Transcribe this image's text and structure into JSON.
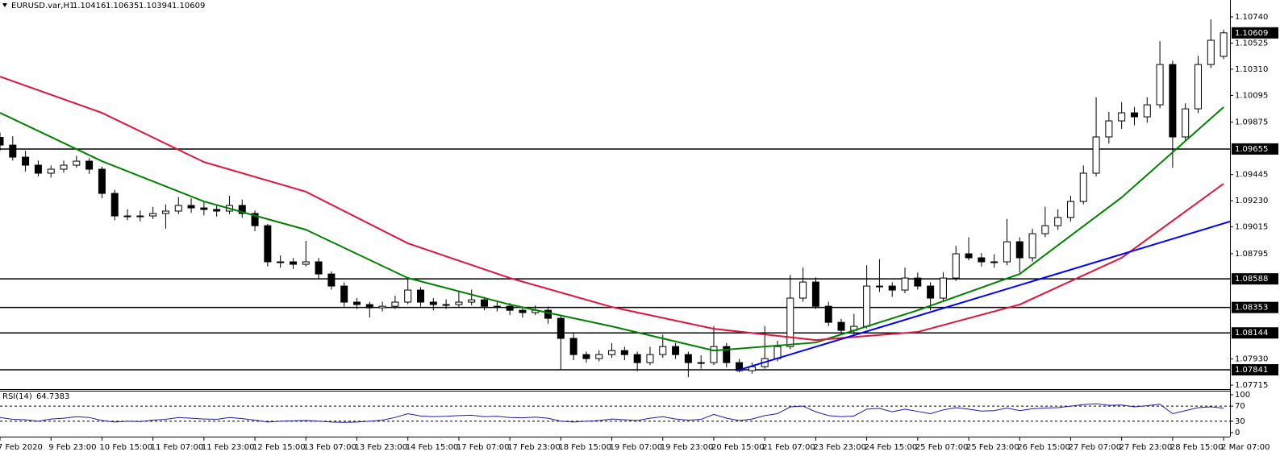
{
  "chart_data": {
    "type": "candlestick",
    "title": "EURUSD.var,H1",
    "header_ohlc": [
      1.10416,
      1.10635,
      1.10394,
      1.10609
    ],
    "xlim": [
      0,
      96.5
    ],
    "xticks": [
      {
        "value": 0,
        "label": "7 Feb 2020"
      },
      {
        "value": 4,
        "label": "9 Feb 23:00"
      },
      {
        "value": 8,
        "label": "10 Feb 15:00"
      },
      {
        "value": 12,
        "label": "11 Feb 07:00"
      },
      {
        "value": 16,
        "label": "11 Feb 23:00"
      },
      {
        "value": 20,
        "label": "12 Feb 15:00"
      },
      {
        "value": 24,
        "label": "13 Feb 07:00"
      },
      {
        "value": 28,
        "label": "13 Feb 23:00"
      },
      {
        "value": 32,
        "label": "14 Feb 15:00"
      },
      {
        "value": 36,
        "label": "17 Feb 07:00"
      },
      {
        "value": 40,
        "label": "17 Feb 23:00"
      },
      {
        "value": 44,
        "label": "18 Feb 15:00"
      },
      {
        "value": 48,
        "label": "19 Feb 07:00"
      },
      {
        "value": 52,
        "label": "19 Feb 23:00"
      },
      {
        "value": 56,
        "label": "20 Feb 15:00"
      },
      {
        "value": 60,
        "label": "21 Feb 07:00"
      },
      {
        "value": 64,
        "label": "23 Feb 23:00"
      },
      {
        "value": 68,
        "label": "24 Feb 15:00"
      },
      {
        "value": 72,
        "label": "25 Feb 07:00"
      },
      {
        "value": 76,
        "label": "25 Feb 23:00"
      },
      {
        "value": 80,
        "label": "26 Feb 15:00"
      },
      {
        "value": 84,
        "label": "27 Feb 07:00"
      },
      {
        "value": 88,
        "label": "27 Feb 23:00"
      },
      {
        "value": 92,
        "label": "28 Feb 15:00"
      },
      {
        "value": 96,
        "label": "2 Mar 07:00"
      }
    ],
    "ylim": [
      1.07689,
      1.10826
    ],
    "yticks": [
      {
        "value": 1.1074,
        "label": "1.10740"
      },
      1.10525,
      {
        "value": 1.1031,
        "label": "1.10310"
      },
      1.10095,
      1.09875,
      1.09445,
      {
        "value": 1.0923,
        "label": "1.09230"
      },
      1.09015,
      1.08795,
      {
        "value": 1.0793,
        "label": "1.07930"
      },
      1.07715
    ],
    "levels": [
      1.09655,
      1.08588,
      1.08353,
      1.08144,
      1.07841
    ],
    "last_price": 1.10609,
    "ohlc": [
      [
        1.0975,
        1.0979,
        1.0964,
        1.09687
      ],
      [
        1.09687,
        1.0976,
        1.0956,
        1.09588
      ],
      [
        1.09588,
        1.0964,
        1.0947,
        1.09522
      ],
      [
        1.09522,
        1.0956,
        1.0943,
        1.09456
      ],
      [
        1.09456,
        1.0952,
        1.0942,
        1.09489
      ],
      [
        1.09489,
        1.0956,
        1.0946,
        1.09522
      ],
      [
        1.09522,
        1.096,
        1.095,
        1.09555
      ],
      [
        1.09555,
        1.0958,
        1.0945,
        1.09489
      ],
      [
        1.09489,
        1.0951,
        1.0925,
        1.0929
      ],
      [
        1.0929,
        1.0932,
        1.0907,
        1.09105
      ],
      [
        1.09105,
        1.0916,
        1.0907,
        1.09105
      ],
      [
        1.09105,
        1.0915,
        1.0906,
        1.09105
      ],
      [
        1.09105,
        1.0918,
        1.0908,
        1.09125
      ],
      [
        1.09125,
        1.092,
        1.09,
        1.09145
      ],
      [
        1.09145,
        1.0926,
        1.0912,
        1.09191
      ],
      [
        1.09191,
        1.0925,
        1.0913,
        1.09171
      ],
      [
        1.09171,
        1.0922,
        1.0911,
        1.09158
      ],
      [
        1.09158,
        1.092,
        1.091,
        1.09145
      ],
      [
        1.09145,
        1.0927,
        1.0912,
        1.09191
      ],
      [
        1.09191,
        1.0924,
        1.0909,
        1.09125
      ],
      [
        1.09125,
        1.0915,
        1.0898,
        1.09025
      ],
      [
        1.09025,
        1.0904,
        1.0869,
        1.08728
      ],
      [
        1.08728,
        1.0878,
        1.0868,
        1.08728
      ],
      [
        1.08728,
        1.0876,
        1.0867,
        1.08708
      ],
      [
        1.08708,
        1.089,
        1.0869,
        1.08728
      ],
      [
        1.08728,
        1.0876,
        1.0859,
        1.08628
      ],
      [
        1.08628,
        1.0865,
        1.085,
        1.08529
      ],
      [
        1.08529,
        1.0856,
        1.0836,
        1.08397
      ],
      [
        1.08397,
        1.0843,
        1.0834,
        1.08377
      ],
      [
        1.08377,
        1.084,
        1.0827,
        1.0835
      ],
      [
        1.0835,
        1.084,
        1.0832,
        1.08363
      ],
      [
        1.08363,
        1.0845,
        1.0834,
        1.08397
      ],
      [
        1.08397,
        1.086,
        1.0838,
        1.08496
      ],
      [
        1.08496,
        1.0852,
        1.0836,
        1.08397
      ],
      [
        1.08397,
        1.0843,
        1.0833,
        1.08377
      ],
      [
        1.08377,
        1.0842,
        1.0834,
        1.08377
      ],
      [
        1.08377,
        1.0848,
        1.0835,
        1.08397
      ],
      [
        1.08397,
        1.085,
        1.0837,
        1.08416
      ],
      [
        1.08416,
        1.0844,
        1.0833,
        1.08363
      ],
      [
        1.08363,
        1.084,
        1.0832,
        1.08363
      ],
      [
        1.08363,
        1.0839,
        1.0829,
        1.0833
      ],
      [
        1.0833,
        1.0836,
        1.0827,
        1.08311
      ],
      [
        1.08311,
        1.0837,
        1.0829,
        1.0833
      ],
      [
        1.0833,
        1.0836,
        1.0822,
        1.08264
      ],
      [
        1.08264,
        1.0829,
        1.0784,
        1.08099
      ],
      [
        1.08099,
        1.0814,
        1.0792,
        1.07966
      ],
      [
        1.07966,
        1.0799,
        1.079,
        1.07933
      ],
      [
        1.07933,
        1.08,
        1.0791,
        1.07966
      ],
      [
        1.07966,
        1.0806,
        1.0794,
        1.07999
      ],
      [
        1.07999,
        1.0803,
        1.0792,
        1.07966
      ],
      [
        1.07966,
        1.0799,
        1.0783,
        1.079
      ],
      [
        1.079,
        1.0803,
        1.0788,
        1.07966
      ],
      [
        1.07966,
        1.0813,
        1.0794,
        1.08032
      ],
      [
        1.08032,
        1.0806,
        1.0793,
        1.07966
      ],
      [
        1.07966,
        1.0799,
        1.0778,
        1.079
      ],
      [
        1.079,
        1.0796,
        1.0785,
        1.079
      ],
      [
        1.079,
        1.082,
        1.0788,
        1.08032
      ],
      [
        1.08032,
        1.0806,
        1.0786,
        1.079
      ],
      [
        1.079,
        1.0793,
        1.0782,
        1.07834
      ],
      [
        1.07834,
        1.079,
        1.0781,
        1.07867
      ],
      [
        1.07867,
        1.082,
        1.0785,
        1.07933
      ],
      [
        1.07933,
        1.0808,
        1.0791,
        1.08032
      ],
      [
        1.08032,
        1.0862,
        1.0801,
        1.0843
      ],
      [
        1.0843,
        1.0868,
        1.084,
        1.08562
      ],
      [
        1.08562,
        1.086,
        1.0834,
        1.08363
      ],
      [
        1.08363,
        1.084,
        1.082,
        1.08231
      ],
      [
        1.08231,
        1.0826,
        1.0814,
        1.08165
      ],
      [
        1.08165,
        1.083,
        1.0813,
        1.08198
      ],
      [
        1.08198,
        1.087,
        1.0818,
        1.08529
      ],
      [
        1.08529,
        1.0875,
        1.0848,
        1.08529
      ],
      [
        1.08529,
        1.0856,
        1.0844,
        1.08496
      ],
      [
        1.08496,
        1.0868,
        1.0847,
        1.08595
      ],
      [
        1.08595,
        1.0864,
        1.085,
        1.08529
      ],
      [
        1.08529,
        1.0856,
        1.0833,
        1.0843
      ],
      [
        1.0843,
        1.0864,
        1.084,
        1.08595
      ],
      [
        1.08595,
        1.0886,
        1.0857,
        1.08794
      ],
      [
        1.08794,
        1.0893,
        1.0874,
        1.08761
      ],
      [
        1.08761,
        1.088,
        1.0869,
        1.08728
      ],
      [
        1.08728,
        1.0879,
        1.0868,
        1.08728
      ],
      [
        1.08728,
        1.0908,
        1.087,
        1.08893
      ],
      [
        1.08893,
        1.0893,
        1.0864,
        1.08761
      ],
      [
        1.08761,
        1.09,
        1.0873,
        1.08959
      ],
      [
        1.08959,
        1.0918,
        1.0893,
        1.09025
      ],
      [
        1.09025,
        1.0916,
        1.0899,
        1.09092
      ],
      [
        1.09092,
        1.0927,
        1.0906,
        1.09224
      ],
      [
        1.09224,
        1.0952,
        1.092,
        1.09456
      ],
      [
        1.09456,
        1.1008,
        1.0943,
        1.09754
      ],
      [
        1.09754,
        1.0996,
        1.097,
        1.09886
      ],
      [
        1.09886,
        1.1004,
        1.0982,
        1.09952
      ],
      [
        1.09952,
        1.1,
        1.0985,
        1.09919
      ],
      [
        1.09919,
        1.1008,
        1.0987,
        1.10018
      ],
      [
        1.10018,
        1.1054,
        1.0999,
        1.10349
      ],
      [
        1.10349,
        1.1038,
        1.095,
        1.09754
      ],
      [
        1.09754,
        1.1003,
        1.0972,
        1.09985
      ],
      [
        1.09985,
        1.1042,
        1.0995,
        1.10349
      ],
      [
        1.10349,
        1.1072,
        1.1032,
        1.10548
      ],
      [
        1.10416,
        1.10635,
        1.10394,
        1.10609
      ]
    ],
    "series": [
      {
        "color": "#008000",
        "x": [
          0,
          8,
          16,
          24,
          32,
          40,
          48,
          56,
          64,
          72,
          80,
          88,
          96
        ],
        "values": [
          1.09952,
          1.09555,
          1.09224,
          1.08992,
          1.08595,
          1.08377,
          1.08198,
          1.07999,
          1.08065,
          1.0833,
          1.08628,
          1.09257,
          1.09999
        ]
      },
      {
        "color": "#e0143c",
        "x": [
          0,
          8,
          16,
          24,
          32,
          40,
          48,
          56,
          64,
          72,
          80,
          88,
          96
        ],
        "values": [
          1.1025,
          1.09952,
          1.09548,
          1.09304,
          1.0888,
          1.08595,
          1.08357,
          1.08178,
          1.08085,
          1.08152,
          1.08377,
          1.08761,
          1.0937
        ]
      },
      {
        "color": "#0000ff",
        "x": [
          57.8,
          96.5
        ],
        "values": [
          1.07834,
          1.09059
        ]
      }
    ],
    "rsi": {
      "name": "RSI(14)",
      "current": 64.7383,
      "color": "#1c1ca8",
      "ylim": [
        0,
        100
      ],
      "yticks": [
        100,
        70,
        30,
        0
      ],
      "levels": [
        70,
        30
      ],
      "values": [
        40,
        35,
        34,
        30,
        36,
        38,
        42,
        40,
        32,
        28,
        30,
        29,
        33,
        35,
        40,
        38,
        36,
        35,
        40,
        37,
        33,
        28,
        30,
        31,
        32,
        30,
        28,
        27,
        28,
        30,
        33,
        40,
        50,
        44,
        42,
        43,
        45,
        46,
        42,
        43,
        40,
        39,
        41,
        38,
        30,
        28,
        30,
        32,
        36,
        34,
        32,
        38,
        42,
        36,
        33,
        35,
        48,
        38,
        32,
        36,
        45,
        50,
        68,
        70,
        55,
        45,
        42,
        44,
        62,
        64,
        55,
        62,
        56,
        50,
        60,
        66,
        62,
        57,
        58,
        65,
        58,
        63,
        65,
        66,
        70,
        74,
        76,
        72,
        73,
        68,
        71,
        75,
        50,
        58,
        66,
        68,
        64.7383
      ]
    }
  }
}
